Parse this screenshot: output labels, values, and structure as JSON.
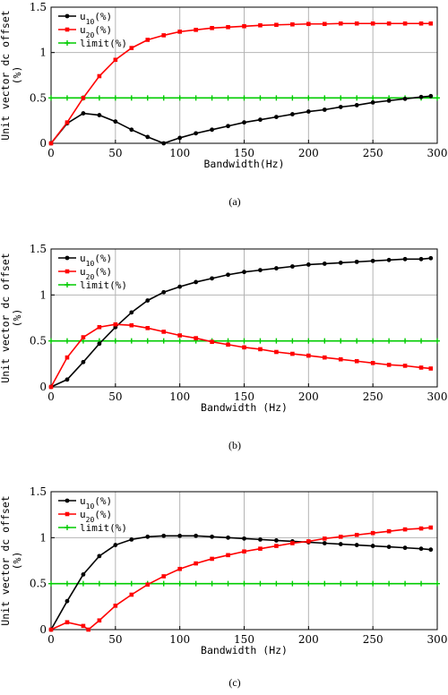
{
  "chart_data": [
    {
      "type": "line",
      "panel_label": "(a)",
      "xlabel": "Bandwidth(Hz)",
      "ylabel": "Unit vector dc offset",
      "ylabel_unit": "(%)",
      "xlim": [
        0,
        300
      ],
      "ylim": [
        0,
        1.5
      ],
      "xticks": [
        "0",
        "50",
        "100",
        "150",
        "200",
        "250",
        "300"
      ],
      "yticks": [
        "0",
        "0.5",
        "1",
        "1.5"
      ],
      "grid": true,
      "legend_position": "top-left",
      "series": [
        {
          "name": "u10(%)",
          "name_base": "u",
          "name_sub": "10",
          "name_tail": "(%)",
          "color": "#000000",
          "marker": "circle",
          "x": [
            0,
            12.5,
            25,
            37.5,
            50,
            62.5,
            75,
            87.5,
            100,
            112.5,
            125,
            137.5,
            150,
            162.5,
            175,
            187.5,
            200,
            212.5,
            225,
            237.5,
            250,
            262.5,
            275,
            287.5,
            295
          ],
          "y": [
            0,
            0.22,
            0.33,
            0.31,
            0.24,
            0.15,
            0.07,
            0.0,
            0.06,
            0.11,
            0.15,
            0.19,
            0.23,
            0.26,
            0.29,
            0.32,
            0.35,
            0.37,
            0.4,
            0.42,
            0.45,
            0.47,
            0.49,
            0.51,
            0.52
          ]
        },
        {
          "name": "u20(%)",
          "name_base": "u",
          "name_sub": "20",
          "name_tail": "(%)",
          "color": "#ff0000",
          "marker": "square",
          "x": [
            0,
            12.5,
            25,
            37.5,
            50,
            62.5,
            75,
            87.5,
            100,
            112.5,
            125,
            137.5,
            150,
            162.5,
            175,
            187.5,
            200,
            212.5,
            225,
            237.5,
            250,
            262.5,
            275,
            287.5,
            295
          ],
          "y": [
            0,
            0.23,
            0.5,
            0.74,
            0.92,
            1.05,
            1.14,
            1.19,
            1.23,
            1.25,
            1.27,
            1.28,
            1.29,
            1.3,
            1.305,
            1.31,
            1.315,
            1.315,
            1.32,
            1.32,
            1.32,
            1.32,
            1.32,
            1.32,
            1.32
          ]
        },
        {
          "name": "limit(%)",
          "name_base": "limit(%)",
          "name_sub": "",
          "name_tail": "",
          "color": "#00cc00",
          "marker": "plus",
          "x": [
            0,
            12.5,
            25,
            37.5,
            50,
            62.5,
            75,
            87.5,
            100,
            112.5,
            125,
            137.5,
            150,
            162.5,
            175,
            187.5,
            200,
            212.5,
            225,
            237.5,
            250,
            262.5,
            275,
            287.5,
            300
          ],
          "y": [
            0.5,
            0.5,
            0.5,
            0.5,
            0.5,
            0.5,
            0.5,
            0.5,
            0.5,
            0.5,
            0.5,
            0.5,
            0.5,
            0.5,
            0.5,
            0.5,
            0.5,
            0.5,
            0.5,
            0.5,
            0.5,
            0.5,
            0.5,
            0.5,
            0.5
          ]
        }
      ]
    },
    {
      "type": "line",
      "panel_label": "(b)",
      "xlabel": "Bandwidth (Hz)",
      "ylabel": "Unit vector dc offset",
      "ylabel_unit": "(%)",
      "xlim": [
        0,
        300
      ],
      "ylim": [
        0,
        1.5
      ],
      "xticks": [
        "0",
        "50",
        "100",
        "150",
        "200",
        "250",
        "300"
      ],
      "yticks": [
        "0",
        "0.5",
        "1",
        "1.5"
      ],
      "grid": true,
      "legend_position": "top-left",
      "series": [
        {
          "name": "u10(%)",
          "name_base": "u",
          "name_sub": "10",
          "name_tail": "(%)",
          "color": "#000000",
          "marker": "circle",
          "x": [
            0,
            12.5,
            25,
            37.5,
            50,
            62.5,
            75,
            87.5,
            100,
            112.5,
            125,
            137.5,
            150,
            162.5,
            175,
            187.5,
            200,
            212.5,
            225,
            237.5,
            250,
            262.5,
            275,
            287.5,
            295
          ],
          "y": [
            0,
            0.08,
            0.27,
            0.47,
            0.65,
            0.81,
            0.94,
            1.03,
            1.09,
            1.14,
            1.18,
            1.22,
            1.25,
            1.27,
            1.29,
            1.31,
            1.33,
            1.34,
            1.35,
            1.36,
            1.37,
            1.38,
            1.39,
            1.39,
            1.4
          ]
        },
        {
          "name": "u20(%)",
          "name_base": "u",
          "name_sub": "20",
          "name_tail": "(%)",
          "color": "#ff0000",
          "marker": "square",
          "x": [
            0,
            12.5,
            25,
            37.5,
            50,
            62.5,
            75,
            87.5,
            100,
            112.5,
            125,
            137.5,
            150,
            162.5,
            175,
            187.5,
            200,
            212.5,
            225,
            237.5,
            250,
            262.5,
            275,
            287.5,
            295
          ],
          "y": [
            0,
            0.32,
            0.54,
            0.65,
            0.68,
            0.67,
            0.64,
            0.6,
            0.56,
            0.53,
            0.49,
            0.46,
            0.43,
            0.41,
            0.38,
            0.36,
            0.34,
            0.32,
            0.3,
            0.28,
            0.26,
            0.24,
            0.23,
            0.21,
            0.2
          ]
        },
        {
          "name": "limit(%)",
          "name_base": "limit(%)",
          "name_sub": "",
          "name_tail": "",
          "color": "#00cc00",
          "marker": "plus",
          "x": [
            0,
            12.5,
            25,
            37.5,
            50,
            62.5,
            75,
            87.5,
            100,
            112.5,
            125,
            137.5,
            150,
            162.5,
            175,
            187.5,
            200,
            212.5,
            225,
            237.5,
            250,
            262.5,
            275,
            287.5,
            300
          ],
          "y": [
            0.5,
            0.5,
            0.5,
            0.5,
            0.5,
            0.5,
            0.5,
            0.5,
            0.5,
            0.5,
            0.5,
            0.5,
            0.5,
            0.5,
            0.5,
            0.5,
            0.5,
            0.5,
            0.5,
            0.5,
            0.5,
            0.5,
            0.5,
            0.5,
            0.5
          ]
        }
      ]
    },
    {
      "type": "line",
      "panel_label": "(c)",
      "xlabel": "Bandwidth (Hz)",
      "ylabel": "Unit vector dc offset",
      "ylabel_unit": "(%)",
      "xlim": [
        0,
        300
      ],
      "ylim": [
        0,
        1.5
      ],
      "xticks": [
        "0",
        "50",
        "100",
        "150",
        "200",
        "250",
        "300"
      ],
      "yticks": [
        "0",
        "0.5",
        "1",
        "1.5"
      ],
      "grid": true,
      "legend_position": "top-left",
      "series": [
        {
          "name": "u10(%)",
          "name_base": "u",
          "name_sub": "10",
          "name_tail": "(%)",
          "color": "#000000",
          "marker": "circle",
          "x": [
            0,
            12.5,
            25,
            37.5,
            50,
            62.5,
            75,
            87.5,
            100,
            112.5,
            125,
            137.5,
            150,
            162.5,
            175,
            187.5,
            200,
            212.5,
            225,
            237.5,
            250,
            262.5,
            275,
            287.5,
            295
          ],
          "y": [
            0,
            0.31,
            0.6,
            0.8,
            0.92,
            0.98,
            1.01,
            1.02,
            1.02,
            1.02,
            1.01,
            1.0,
            0.99,
            0.98,
            0.97,
            0.96,
            0.95,
            0.94,
            0.93,
            0.92,
            0.91,
            0.9,
            0.89,
            0.88,
            0.87
          ]
        },
        {
          "name": "u20(%)",
          "name_base": "u",
          "name_sub": "20",
          "name_tail": "(%)",
          "color": "#ff0000",
          "marker": "square",
          "x": [
            0,
            12.5,
            25,
            29,
            37.5,
            50,
            62.5,
            75,
            87.5,
            100,
            112.5,
            125,
            137.5,
            150,
            162.5,
            175,
            187.5,
            200,
            212.5,
            225,
            237.5,
            250,
            262.5,
            275,
            287.5,
            295
          ],
          "y": [
            0,
            0.08,
            0.04,
            0.0,
            0.1,
            0.26,
            0.38,
            0.49,
            0.58,
            0.66,
            0.72,
            0.77,
            0.81,
            0.85,
            0.88,
            0.91,
            0.94,
            0.96,
            0.99,
            1.01,
            1.03,
            1.05,
            1.07,
            1.09,
            1.1,
            1.11
          ]
        },
        {
          "name": "limit(%)",
          "name_base": "limit(%)",
          "name_sub": "",
          "name_tail": "",
          "color": "#00cc00",
          "marker": "plus",
          "x": [
            0,
            12.5,
            25,
            37.5,
            50,
            62.5,
            75,
            87.5,
            100,
            112.5,
            125,
            137.5,
            150,
            162.5,
            175,
            187.5,
            200,
            212.5,
            225,
            237.5,
            250,
            262.5,
            275,
            287.5,
            300
          ],
          "y": [
            0.5,
            0.5,
            0.5,
            0.5,
            0.5,
            0.5,
            0.5,
            0.5,
            0.5,
            0.5,
            0.5,
            0.5,
            0.5,
            0.5,
            0.5,
            0.5,
            0.5,
            0.5,
            0.5,
            0.5,
            0.5,
            0.5,
            0.5,
            0.5,
            0.5
          ]
        }
      ]
    }
  ]
}
